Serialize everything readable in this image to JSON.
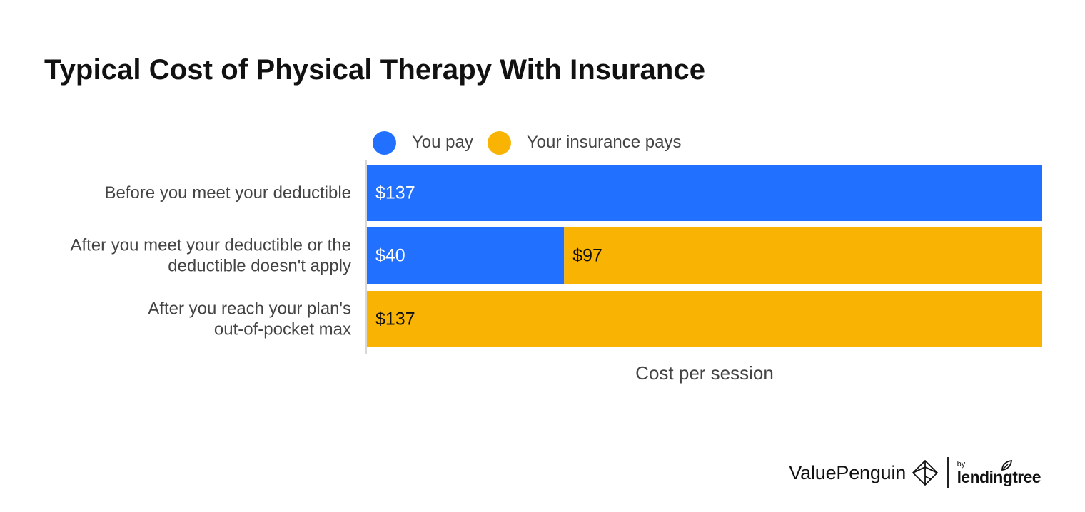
{
  "title": "Typical Cost of Physical Therapy With Insurance",
  "colors": {
    "you_pay": "#2170FF",
    "insurance_pays": "#F9B302",
    "axis": "#cccccc",
    "label_text": "#444444"
  },
  "chart_data": {
    "type": "bar",
    "orientation": "horizontal",
    "stacked": true,
    "title": "Typical Cost of Physical Therapy With Insurance",
    "xlabel": "Cost per session",
    "ylabel": "",
    "xlim": [
      0,
      137
    ],
    "grid": false,
    "legend_position": "top",
    "categories": [
      [
        "Before you meet your deductible"
      ],
      [
        "After you meet your deductible or the",
        "deductible doesn't apply"
      ],
      [
        "After you reach your plan's",
        "out-of-pocket max"
      ]
    ],
    "series": [
      {
        "name": "You pay",
        "color": "#2170FF",
        "values": [
          137,
          40,
          0
        ],
        "labels": [
          "$137",
          "$40",
          ""
        ]
      },
      {
        "name": "Your insurance pays",
        "color": "#F9B302",
        "values": [
          0,
          97,
          137
        ],
        "labels": [
          "",
          "$97",
          "$137"
        ]
      }
    ]
  },
  "footer": {
    "brand_name": "ValuePenguin",
    "by": "by",
    "partner": "lendingtree"
  }
}
